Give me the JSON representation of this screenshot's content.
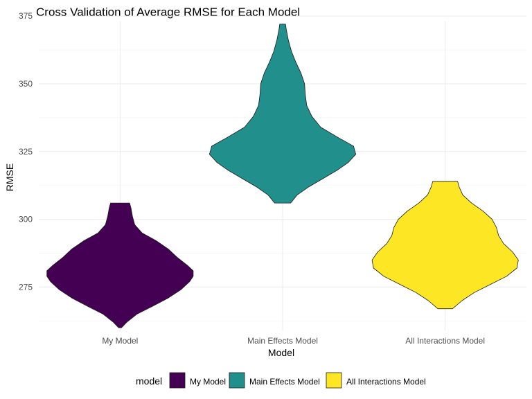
{
  "chart_data": {
    "type": "violin",
    "title": "Cross Validation of Average RMSE for Each Model",
    "xlabel": "Model",
    "ylabel": "RMSE",
    "ylim": [
      259,
      373
    ],
    "yticks": [
      275,
      300,
      325,
      350,
      375
    ],
    "categories": [
      "My Model",
      "Main Effects Model",
      "All Interactions Model"
    ],
    "grid": true,
    "legend": {
      "title": "model",
      "position": "bottom"
    },
    "series": [
      {
        "name": "My Model",
        "color": "#440154",
        "min": 260,
        "max": 306,
        "profile": [
          [
            260,
            0.02
          ],
          [
            262,
            0.09
          ],
          [
            265,
            0.23
          ],
          [
            268,
            0.45
          ],
          [
            271,
            0.66
          ],
          [
            274,
            0.83
          ],
          [
            277,
            0.95
          ],
          [
            279,
            1.0
          ],
          [
            281,
            1.0
          ],
          [
            283,
            0.92
          ],
          [
            286,
            0.78
          ],
          [
            289,
            0.66
          ],
          [
            292,
            0.5
          ],
          [
            295,
            0.3
          ],
          [
            298,
            0.2
          ],
          [
            301,
            0.17
          ],
          [
            304,
            0.15
          ],
          [
            306,
            0.13
          ]
        ]
      },
      {
        "name": "Main Effects Model",
        "color": "#21908C",
        "min": 306,
        "max": 372,
        "profile": [
          [
            306,
            0.11
          ],
          [
            309,
            0.2
          ],
          [
            312,
            0.36
          ],
          [
            315,
            0.55
          ],
          [
            318,
            0.74
          ],
          [
            321,
            0.9
          ],
          [
            324,
            1.0
          ],
          [
            327,
            0.97
          ],
          [
            330,
            0.77
          ],
          [
            334,
            0.52
          ],
          [
            338,
            0.4
          ],
          [
            342,
            0.33
          ],
          [
            346,
            0.31
          ],
          [
            350,
            0.3
          ],
          [
            354,
            0.25
          ],
          [
            358,
            0.18
          ],
          [
            362,
            0.12
          ],
          [
            366,
            0.08
          ],
          [
            370,
            0.05
          ],
          [
            372,
            0.04
          ]
        ]
      },
      {
        "name": "All Interactions Model",
        "color": "#FDE725",
        "min": 267,
        "max": 314,
        "profile": [
          [
            267,
            0.1
          ],
          [
            270,
            0.23
          ],
          [
            273,
            0.4
          ],
          [
            276,
            0.62
          ],
          [
            279,
            0.84
          ],
          [
            282,
            0.98
          ],
          [
            285,
            1.0
          ],
          [
            288,
            0.92
          ],
          [
            291,
            0.8
          ],
          [
            294,
            0.73
          ],
          [
            297,
            0.7
          ],
          [
            300,
            0.64
          ],
          [
            303,
            0.52
          ],
          [
            306,
            0.36
          ],
          [
            309,
            0.24
          ],
          [
            312,
            0.19
          ],
          [
            314,
            0.17
          ]
        ]
      }
    ]
  }
}
